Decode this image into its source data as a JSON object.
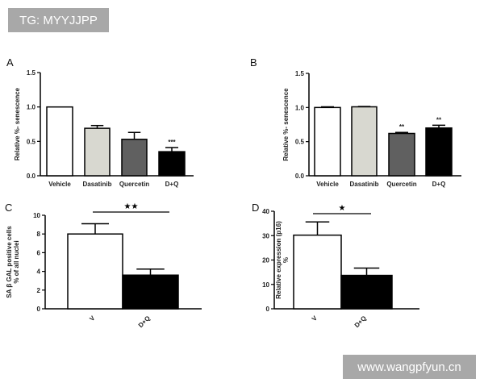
{
  "watermarks": {
    "top_left": "TG: MYYJJPP",
    "bottom_right": "www.wangpfyun.cn"
  },
  "chart_data": [
    {
      "panel": "A",
      "type": "bar",
      "ylabel": "Relative %- senescence",
      "ylim": [
        0,
        1.5
      ],
      "yticks": [
        "0.0",
        "0.5",
        "1.0",
        "1.5"
      ],
      "categories": [
        "Vehicle",
        "Dasatinib",
        "Quercetin",
        "D+Q"
      ],
      "values": [
        1.0,
        0.69,
        0.53,
        0.35
      ],
      "errors": [
        0,
        0.04,
        0.1,
        0.06
      ],
      "colors": [
        "#ffffff",
        "#d8d8d0",
        "#606060",
        "#000000"
      ],
      "annotations": [
        "",
        "",
        "",
        "***"
      ]
    },
    {
      "panel": "B",
      "type": "bar",
      "ylabel": "Relative %- senescence",
      "ylim": [
        0,
        1.5
      ],
      "yticks": [
        "0.0",
        "0.5",
        "1.0",
        "1.5"
      ],
      "categories": [
        "Vehicle",
        "Dasatinib",
        "Quercetin",
        "D+Q"
      ],
      "values": [
        1.0,
        1.01,
        0.62,
        0.7
      ],
      "errors": [
        0.01,
        0.005,
        0.015,
        0.04
      ],
      "colors": [
        "#ffffff",
        "#d8d8d0",
        "#606060",
        "#000000"
      ],
      "annotations": [
        "",
        "",
        "**",
        "**"
      ]
    },
    {
      "panel": "C",
      "type": "bar",
      "ylabel": [
        "SA β GAL positive cells",
        "% of all nuclei"
      ],
      "ylim": [
        0,
        10
      ],
      "yticks": [
        "0",
        "2",
        "4",
        "6",
        "8",
        "10"
      ],
      "categories": [
        "V",
        "D+Q"
      ],
      "values": [
        8.0,
        3.6
      ],
      "errors": [
        1.1,
        0.65
      ],
      "colors": [
        "#ffffff",
        "#000000"
      ],
      "significance": "★★"
    },
    {
      "panel": "D",
      "type": "bar",
      "ylabel": [
        "Relative expression (p16)",
        "%"
      ],
      "ylim": [
        0,
        40
      ],
      "yticks": [
        "0",
        "10",
        "20",
        "30",
        "40"
      ],
      "categories": [
        "V",
        "D+Q"
      ],
      "values": [
        30.2,
        13.7
      ],
      "errors": [
        5.4,
        3.0
      ],
      "colors": [
        "#ffffff",
        "#000000"
      ],
      "significance": "★"
    }
  ]
}
